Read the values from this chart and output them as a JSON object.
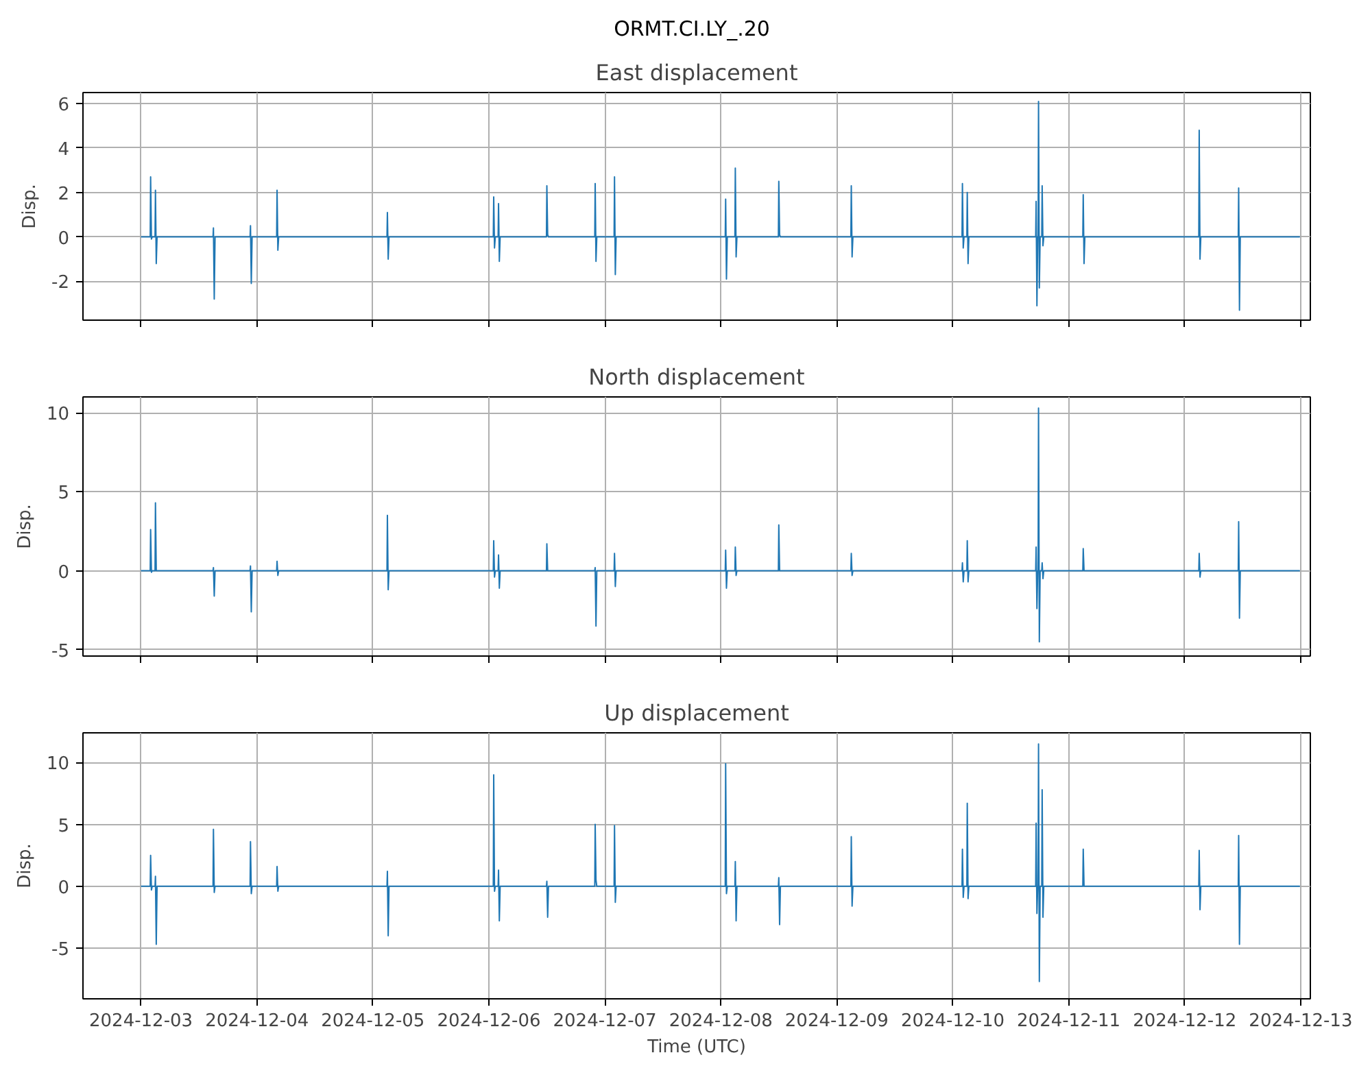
{
  "chart_data": [
    {
      "type": "line",
      "title": "ORMT.CI.LY_.20",
      "subtitle": "East displacement",
      "ylabel": "Disp.",
      "xlim": [
        "2024-12-02T12:00",
        "2024-12-13T02:00"
      ],
      "ylim": [
        -3.75,
        6.5
      ],
      "yticks": [
        -2,
        0,
        2,
        4,
        6
      ],
      "xticks": [
        "2024-12-03",
        "2024-12-04",
        "2024-12-05",
        "2024-12-06",
        "2024-12-07",
        "2024-12-08",
        "2024-12-09",
        "2024-12-10",
        "2024-12-11",
        "2024-12-12",
        "2024-12-13"
      ],
      "grid": true,
      "tick_labels": "y",
      "x": [
        "2024-12-03T00:00",
        "2024-12-03T01:55",
        "2024-12-03T02:00",
        "2024-12-03T02:10",
        "2024-12-03T02:20",
        "2024-12-03T02:55",
        "2024-12-03T03:00",
        "2024-12-03T03:10",
        "2024-12-03T03:20",
        "2024-12-03T14:55",
        "2024-12-03T15:00",
        "2024-12-03T15:10",
        "2024-12-03T15:20",
        "2024-12-03T22:35",
        "2024-12-03T22:40",
        "2024-12-03T22:50",
        "2024-12-03T23:00",
        "2024-12-04T04:05",
        "2024-12-04T04:10",
        "2024-12-04T04:20",
        "2024-12-04T04:30",
        "2024-12-05T02:55",
        "2024-12-05T03:00",
        "2024-12-05T03:10",
        "2024-12-05T03:20",
        "2024-12-06T00:55",
        "2024-12-06T01:00",
        "2024-12-06T01:10",
        "2024-12-06T01:20",
        "2024-12-06T01:55",
        "2024-12-06T02:00",
        "2024-12-06T02:10",
        "2024-12-06T02:20",
        "2024-12-06T11:55",
        "2024-12-06T12:00",
        "2024-12-06T12:10",
        "2024-12-06T12:20",
        "2024-12-06T21:55",
        "2024-12-06T22:00",
        "2024-12-06T22:10",
        "2024-12-06T22:20",
        "2024-12-07T01:55",
        "2024-12-07T02:00",
        "2024-12-07T02:10",
        "2024-12-07T02:20",
        "2024-12-08T00:55",
        "2024-12-08T01:00",
        "2024-12-08T01:10",
        "2024-12-08T01:20",
        "2024-12-08T02:55",
        "2024-12-08T03:00",
        "2024-12-08T03:10",
        "2024-12-08T03:20",
        "2024-12-08T11:55",
        "2024-12-08T12:00",
        "2024-12-08T12:10",
        "2024-12-08T12:20",
        "2024-12-09T02:55",
        "2024-12-09T03:00",
        "2024-12-09T03:10",
        "2024-12-09T03:20",
        "2024-12-10T01:55",
        "2024-12-10T02:00",
        "2024-12-10T02:10",
        "2024-12-10T02:20",
        "2024-12-10T02:55",
        "2024-12-10T03:00",
        "2024-12-10T03:10",
        "2024-12-10T03:20",
        "2024-12-10T17:10",
        "2024-12-10T17:15",
        "2024-12-10T17:25",
        "2024-12-10T17:35",
        "2024-12-10T17:40",
        "2024-12-10T17:45",
        "2024-12-10T17:55",
        "2024-12-10T18:05",
        "2024-12-10T18:25",
        "2024-12-10T18:30",
        "2024-12-10T18:40",
        "2024-12-10T18:50",
        "2024-12-11T02:55",
        "2024-12-11T03:00",
        "2024-12-11T03:10",
        "2024-12-11T03:20",
        "2024-12-12T02:55",
        "2024-12-12T03:00",
        "2024-12-12T03:10",
        "2024-12-12T03:20",
        "2024-12-12T11:05",
        "2024-12-12T11:10",
        "2024-12-12T11:20",
        "2024-12-12T11:30",
        "2024-12-12T23:50"
      ],
      "series": [
        {
          "color": "#1f77b4",
          "values": [
            0,
            0,
            2.7,
            -0.1,
            0,
            0,
            2.1,
            -1.2,
            0,
            0,
            0.4,
            -2.8,
            0,
            0,
            0.5,
            -2.1,
            0,
            0,
            2.1,
            -0.6,
            0,
            0,
            1.1,
            -1.0,
            0,
            0,
            1.8,
            -0.5,
            0,
            0,
            1.5,
            -1.1,
            0,
            0,
            2.3,
            0.1,
            0,
            0,
            2.4,
            -1.1,
            0,
            0,
            2.7,
            -1.7,
            0,
            0,
            1.7,
            -1.9,
            0,
            0,
            3.1,
            -0.9,
            0,
            0,
            2.5,
            0.1,
            0,
            0,
            2.3,
            -0.9,
            0,
            0,
            2.4,
            -0.5,
            0,
            0,
            2.0,
            -1.2,
            0,
            0,
            1.6,
            -3.1,
            0,
            0,
            6.1,
            -2.3,
            0,
            0,
            2.3,
            -0.4,
            0,
            0,
            1.9,
            -1.2,
            0,
            0,
            4.8,
            -1.0,
            0,
            0,
            2.2,
            -3.3,
            0,
            0
          ]
        }
      ]
    },
    {
      "type": "line",
      "title": "North displacement",
      "ylabel": "Disp.",
      "xlim": [
        "2024-12-02T12:00",
        "2024-12-13T02:00"
      ],
      "ylim": [
        -5.4,
        11.0
      ],
      "yticks": [
        -5,
        0,
        5,
        10
      ],
      "xticks": [
        "2024-12-03",
        "2024-12-04",
        "2024-12-05",
        "2024-12-06",
        "2024-12-07",
        "2024-12-08",
        "2024-12-09",
        "2024-12-10",
        "2024-12-11",
        "2024-12-12",
        "2024-12-13"
      ],
      "grid": true,
      "tick_labels": "y",
      "x": [
        "2024-12-03T00:00",
        "2024-12-03T01:55",
        "2024-12-03T02:00",
        "2024-12-03T02:10",
        "2024-12-03T02:20",
        "2024-12-03T02:55",
        "2024-12-03T03:00",
        "2024-12-03T03:10",
        "2024-12-03T03:20",
        "2024-12-03T14:55",
        "2024-12-03T15:00",
        "2024-12-03T15:10",
        "2024-12-03T15:20",
        "2024-12-03T22:35",
        "2024-12-03T22:40",
        "2024-12-03T22:50",
        "2024-12-03T23:00",
        "2024-12-04T04:05",
        "2024-12-04T04:10",
        "2024-12-04T04:20",
        "2024-12-04T04:30",
        "2024-12-05T02:55",
        "2024-12-05T03:00",
        "2024-12-05T03:10",
        "2024-12-05T03:20",
        "2024-12-06T00:55",
        "2024-12-06T01:00",
        "2024-12-06T01:10",
        "2024-12-06T01:20",
        "2024-12-06T01:55",
        "2024-12-06T02:00",
        "2024-12-06T02:10",
        "2024-12-06T02:20",
        "2024-12-06T11:55",
        "2024-12-06T12:00",
        "2024-12-06T12:10",
        "2024-12-06T12:20",
        "2024-12-06T21:55",
        "2024-12-06T22:00",
        "2024-12-06T22:10",
        "2024-12-06T22:20",
        "2024-12-07T01:55",
        "2024-12-07T02:00",
        "2024-12-07T02:10",
        "2024-12-07T02:20",
        "2024-12-08T00:55",
        "2024-12-08T01:00",
        "2024-12-08T01:10",
        "2024-12-08T01:20",
        "2024-12-08T02:55",
        "2024-12-08T03:00",
        "2024-12-08T03:10",
        "2024-12-08T03:20",
        "2024-12-08T11:55",
        "2024-12-08T12:00",
        "2024-12-08T12:10",
        "2024-12-08T12:20",
        "2024-12-09T02:55",
        "2024-12-09T03:00",
        "2024-12-09T03:10",
        "2024-12-09T03:20",
        "2024-12-10T01:55",
        "2024-12-10T02:00",
        "2024-12-10T02:10",
        "2024-12-10T02:20",
        "2024-12-10T02:55",
        "2024-12-10T03:00",
        "2024-12-10T03:10",
        "2024-12-10T03:20",
        "2024-12-10T17:10",
        "2024-12-10T17:15",
        "2024-12-10T17:25",
        "2024-12-10T17:35",
        "2024-12-10T17:40",
        "2024-12-10T17:45",
        "2024-12-10T17:55",
        "2024-12-10T18:05",
        "2024-12-10T18:25",
        "2024-12-10T18:30",
        "2024-12-10T18:40",
        "2024-12-10T18:50",
        "2024-12-11T02:55",
        "2024-12-11T03:00",
        "2024-12-11T03:10",
        "2024-12-11T03:20",
        "2024-12-12T02:55",
        "2024-12-12T03:00",
        "2024-12-12T03:10",
        "2024-12-12T03:20",
        "2024-12-12T11:05",
        "2024-12-12T11:10",
        "2024-12-12T11:20",
        "2024-12-12T11:30",
        "2024-12-12T23:50"
      ],
      "series": [
        {
          "color": "#1f77b4",
          "values": [
            0,
            0,
            2.6,
            -0.1,
            0,
            0,
            4.3,
            0,
            0,
            0,
            0.2,
            -1.6,
            0,
            0,
            0.3,
            -2.6,
            0,
            0,
            0.6,
            -0.3,
            0,
            0,
            3.5,
            -1.2,
            0,
            0,
            1.9,
            -0.4,
            0,
            0,
            1.0,
            -1.1,
            0,
            0,
            1.7,
            0,
            0,
            0,
            0.2,
            -3.5,
            0,
            0,
            1.1,
            -1.0,
            0,
            0,
            1.3,
            -1.1,
            0,
            0,
            1.5,
            -0.3,
            0,
            0,
            2.9,
            0,
            0,
            0,
            1.1,
            -0.3,
            0,
            0,
            0.5,
            -0.7,
            0,
            0,
            1.9,
            -0.7,
            0,
            0,
            1.5,
            -2.4,
            0,
            0,
            10.3,
            -4.5,
            0,
            0,
            0.5,
            -0.5,
            0,
            0,
            1.4,
            0,
            0,
            0,
            1.1,
            -0.4,
            0,
            0,
            3.1,
            -3.0,
            0,
            0
          ]
        }
      ]
    },
    {
      "type": "line",
      "title": "Up displacement",
      "ylabel": "Disp.",
      "xlabel": "Time (UTC)",
      "xlim": [
        "2024-12-02T12:00",
        "2024-12-13T02:00"
      ],
      "ylim": [
        -9.1,
        12.4
      ],
      "yticks": [
        -5,
        0,
        5,
        10
      ],
      "xticks": [
        "2024-12-03",
        "2024-12-04",
        "2024-12-05",
        "2024-12-06",
        "2024-12-07",
        "2024-12-08",
        "2024-12-09",
        "2024-12-10",
        "2024-12-11",
        "2024-12-12",
        "2024-12-13"
      ],
      "grid": true,
      "x": [
        "2024-12-03T00:00",
        "2024-12-03T01:55",
        "2024-12-03T02:00",
        "2024-12-03T02:10",
        "2024-12-03T02:20",
        "2024-12-03T02:55",
        "2024-12-03T03:00",
        "2024-12-03T03:10",
        "2024-12-03T03:20",
        "2024-12-03T14:55",
        "2024-12-03T15:00",
        "2024-12-03T15:10",
        "2024-12-03T15:20",
        "2024-12-03T22:35",
        "2024-12-03T22:40",
        "2024-12-03T22:50",
        "2024-12-03T23:00",
        "2024-12-04T04:05",
        "2024-12-04T04:10",
        "2024-12-04T04:20",
        "2024-12-04T04:30",
        "2024-12-05T02:55",
        "2024-12-05T03:00",
        "2024-12-05T03:10",
        "2024-12-05T03:20",
        "2024-12-06T00:55",
        "2024-12-06T01:00",
        "2024-12-06T01:10",
        "2024-12-06T01:20",
        "2024-12-06T01:55",
        "2024-12-06T02:00",
        "2024-12-06T02:10",
        "2024-12-06T02:20",
        "2024-12-06T11:55",
        "2024-12-06T12:00",
        "2024-12-06T12:10",
        "2024-12-06T12:20",
        "2024-12-06T21:55",
        "2024-12-06T22:00",
        "2024-12-06T22:10",
        "2024-12-06T22:20",
        "2024-12-07T01:55",
        "2024-12-07T02:00",
        "2024-12-07T02:10",
        "2024-12-07T02:20",
        "2024-12-08T00:55",
        "2024-12-08T01:00",
        "2024-12-08T01:10",
        "2024-12-08T01:20",
        "2024-12-08T02:55",
        "2024-12-08T03:00",
        "2024-12-08T03:10",
        "2024-12-08T03:20",
        "2024-12-08T11:55",
        "2024-12-08T12:00",
        "2024-12-08T12:10",
        "2024-12-08T12:20",
        "2024-12-09T02:55",
        "2024-12-09T03:00",
        "2024-12-09T03:10",
        "2024-12-09T03:20",
        "2024-12-10T01:55",
        "2024-12-10T02:00",
        "2024-12-10T02:10",
        "2024-12-10T02:20",
        "2024-12-10T02:55",
        "2024-12-10T03:00",
        "2024-12-10T03:10",
        "2024-12-10T03:20",
        "2024-12-10T17:10",
        "2024-12-10T17:15",
        "2024-12-10T17:25",
        "2024-12-10T17:35",
        "2024-12-10T17:40",
        "2024-12-10T17:45",
        "2024-12-10T17:55",
        "2024-12-10T18:05",
        "2024-12-10T18:25",
        "2024-12-10T18:30",
        "2024-12-10T18:40",
        "2024-12-10T18:50",
        "2024-12-11T02:55",
        "2024-12-11T03:00",
        "2024-12-11T03:10",
        "2024-12-11T03:20",
        "2024-12-12T02:55",
        "2024-12-12T03:00",
        "2024-12-12T03:10",
        "2024-12-12T03:20",
        "2024-12-12T11:05",
        "2024-12-12T11:10",
        "2024-12-12T11:20",
        "2024-12-12T11:30",
        "2024-12-12T23:50"
      ],
      "series": [
        {
          "color": "#1f77b4",
          "values": [
            0,
            0,
            2.5,
            -0.3,
            0,
            0,
            0.8,
            -4.7,
            0,
            0,
            4.6,
            -0.5,
            0,
            0,
            3.6,
            -0.6,
            0,
            0,
            1.6,
            -0.4,
            0,
            0,
            1.2,
            -4.0,
            0,
            0,
            9.0,
            -0.4,
            0,
            0,
            1.3,
            -2.8,
            0,
            0,
            0.4,
            -2.5,
            0,
            0,
            5.0,
            0.5,
            0,
            0,
            4.9,
            -1.3,
            0,
            0,
            9.9,
            -0.6,
            0,
            0,
            2.0,
            -2.8,
            0,
            0,
            0.7,
            -3.1,
            0,
            0,
            4.0,
            -1.6,
            0,
            0,
            3.0,
            -0.9,
            0,
            0,
            6.7,
            -1.0,
            0,
            0,
            5.1,
            -2.2,
            0,
            0,
            11.5,
            -7.7,
            0,
            0,
            7.8,
            -2.5,
            0,
            0,
            3.0,
            0,
            0,
            0,
            2.9,
            -1.9,
            0,
            0,
            4.1,
            -4.7,
            0,
            0
          ]
        }
      ]
    }
  ]
}
